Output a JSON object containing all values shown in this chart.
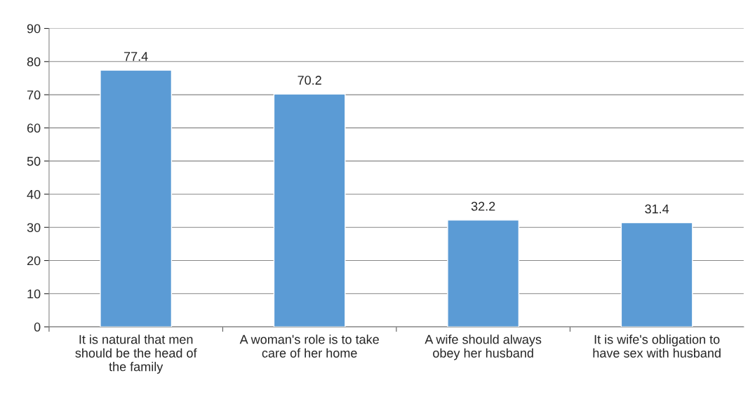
{
  "chart_data": {
    "type": "bar",
    "categories": [
      "It is natural that men\nshould be the head of\nthe family",
      "A woman's role is to take\ncare of her home",
      "A wife should always\nobey her husband",
      "It is wife's obligation to\nhave sex with husband"
    ],
    "values": [
      77.4,
      70.2,
      32.2,
      31.4
    ],
    "color": "#5b9bd5",
    "ylim": [
      0,
      90
    ],
    "yticks": [
      0,
      10,
      20,
      30,
      40,
      50,
      60,
      70,
      80,
      90
    ],
    "grid": "y",
    "data_labels": true
  }
}
